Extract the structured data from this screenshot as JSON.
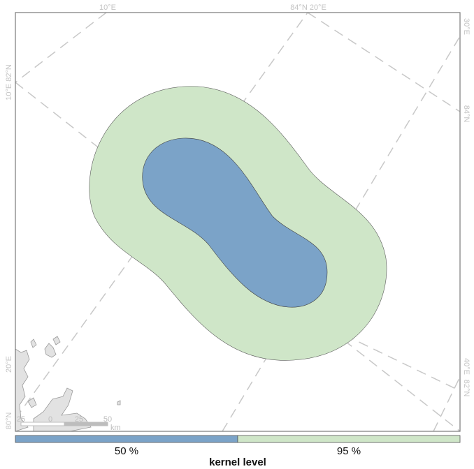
{
  "map": {
    "graticule_labels": {
      "top_left": "10°E",
      "top_right": "84°N 20°E",
      "left_upper": "10°E 82°N",
      "left_lower_1": "20°E",
      "left_lower_2": "80°N",
      "right_upper_1": "30°E",
      "right_upper_2": "84°N",
      "right_lower_1": "40°E",
      "right_lower_2": "82°N"
    },
    "scale_bar": {
      "ticks": [
        "25",
        "0",
        "25",
        "50"
      ],
      "unit": "km"
    },
    "colors": {
      "kernel_50": "#7ba3c8",
      "kernel_95": "#cfe6c8",
      "land": "#e2e2e2",
      "graticule": "#c8c8c8",
      "frame": "#7a7a7a"
    }
  },
  "legend": {
    "items": [
      {
        "label": "50 %",
        "color": "#7ba3c8"
      },
      {
        "label": "95 %",
        "color": "#cfe6c8"
      }
    ],
    "title": "kernel level"
  }
}
